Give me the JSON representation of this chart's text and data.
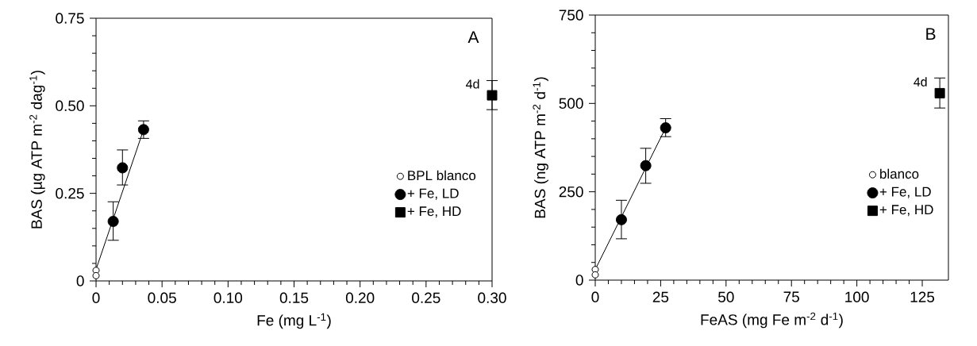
{
  "chart_data": [
    {
      "type": "scatter",
      "xlabel": "Fe (mg L$^{-1}$)",
      "ylabel": "BAS (µg ATP m$^{-2}$ dag$^{-1}$)",
      "xlim": [
        0,
        0.3
      ],
      "ylim": [
        0,
        0.75
      ],
      "xticks": [
        0,
        {
          "value": 0.05,
          "label": "0.05"
        },
        {
          "value": 0.1,
          "label": "0.10"
        },
        {
          "value": 0.15,
          "label": "0.15"
        },
        {
          "value": 0.2,
          "label": "0.20"
        },
        {
          "value": 0.25,
          "label": "0.25"
        },
        {
          "value": 0.3,
          "label": "0.30"
        }
      ],
      "yticks": [
        0,
        {
          "value": 0.25,
          "label": "0.25"
        },
        {
          "value": 0.5,
          "label": "0.50"
        },
        {
          "value": 0.75,
          "label": "0.75"
        }
      ],
      "legend": "right",
      "grid": false,
      "series": [
        {
          "name": "BPL blanco",
          "marker": "circle",
          "color": "#ffffff",
          "x": [
            0,
            0
          ],
          "values": [
            0.03,
            0.015
          ]
        },
        {
          "name": "+ Fe, LD",
          "marker": "circle",
          "color": "#000000",
          "x": [
            0.013,
            0.02,
            0.036
          ],
          "values": [
            0.17,
            0.323,
            0.432
          ],
          "errors": [
            [
              0.116,
              0.226
            ],
            [
              0.274,
              0.374
            ],
            [
              0.407,
              0.457
            ]
          ]
        },
        {
          "name": "+ Fe, HD",
          "marker": "square",
          "color": "#000000",
          "x": [
            0.3
          ],
          "values": [
            0.53
          ],
          "errors": [
            [
              0.489,
              0.572
            ]
          ]
        },
        {
          "type": "line",
          "marker": "none",
          "color": "#000000",
          "x": [
            0,
            0.036
          ],
          "values": [
            0.033,
            0.432
          ]
        }
      ],
      "annotations": [
        {
          "text": "A"
        },
        {
          "text": "4d",
          "x": 0.3,
          "y": 0.53
        }
      ]
    },
    {
      "type": "scatter",
      "xlabel": "FeAS (mg Fe m$^{-2}$ d$^{-1}$)",
      "ylabel": "BAS (ng ATP m$^{-2}$ d$^{-1}$)",
      "xlim": [
        0,
        135
      ],
      "ylim": [
        0,
        750
      ],
      "xticks": [
        0,
        25,
        50,
        75,
        100,
        125
      ],
      "yticks": [
        0,
        250,
        500,
        750
      ],
      "legend": "right",
      "grid": false,
      "series": [
        {
          "name": "blanco",
          "marker": "circle",
          "color": "#ffffff",
          "x": [
            0,
            0
          ],
          "values": [
            30,
            15
          ]
        },
        {
          "name": "+ Fe, LD",
          "marker": "circle",
          "color": "#000000",
          "x": [
            10,
            19.3,
            26.9
          ],
          "values": [
            171,
            324,
            431
          ],
          "errors": [
            [
              117,
              226
            ],
            [
              274,
              373
            ],
            [
              406,
              457
            ]
          ]
        },
        {
          "name": "+ Fe, HD",
          "marker": "square",
          "color": "#000000",
          "x": [
            131.7
          ],
          "values": [
            529
          ],
          "errors": [
            [
              487,
              572
            ]
          ]
        },
        {
          "type": "line",
          "marker": "none",
          "color": "#000000",
          "x": [
            0,
            26.9
          ],
          "values": [
            30,
            431
          ]
        }
      ],
      "annotations": [
        {
          "text": "B"
        },
        {
          "text": "4d",
          "x": 131.7,
          "y": 529
        }
      ]
    }
  ]
}
